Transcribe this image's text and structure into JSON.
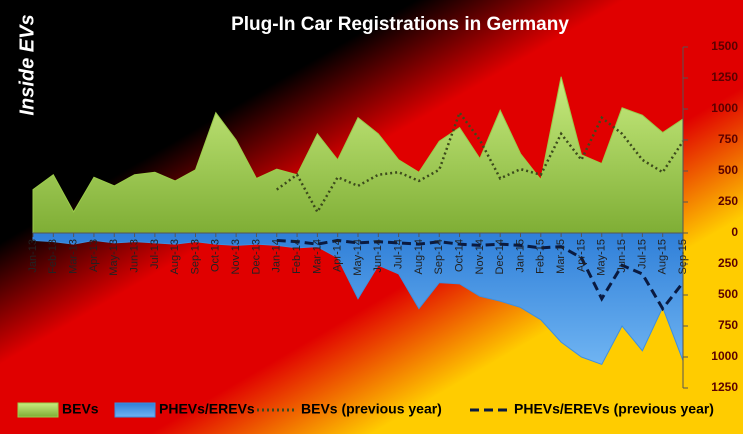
{
  "chart_data": {
    "type": "area",
    "title": "Plug-In Car Registrations in Germany",
    "logo": "Inside EVs",
    "categories": [
      "Jan-13",
      "Feb-13",
      "Mar-13",
      "Apr-13",
      "May-13",
      "Jun-13",
      "Jul-13",
      "Aug-13",
      "Sep-13",
      "Oct-13",
      "Nov-13",
      "Dec-13",
      "Jan-14",
      "Feb-14",
      "Mar-14",
      "Apr-14",
      "May-14",
      "Jun-14",
      "Jul-14",
      "Aug-14",
      "Sep-14",
      "Oct-14",
      "Nov-14",
      "Dec-14",
      "Jan-15",
      "Feb-15",
      "Mar-15",
      "Apr-15",
      "May-15",
      "Jun-15",
      "Jul-15",
      "Aug-15",
      "Sep-15"
    ],
    "series": [
      {
        "name": "BEVs",
        "color": "#9ccc4a",
        "style": "area",
        "values": [
          350,
          470,
          170,
          450,
          380,
          470,
          490,
          420,
          510,
          970,
          750,
          440,
          515,
          470,
          800,
          590,
          930,
          800,
          590,
          490,
          740,
          850,
          600,
          990,
          640,
          430,
          1260,
          630,
          560,
          1010,
          950,
          810,
          920
        ]
      },
      {
        "name": "PHEVs/EREVs",
        "color": "#3d8fe0",
        "style": "area",
        "values": [
          -60,
          -70,
          -90,
          -60,
          -80,
          -70,
          -80,
          -90,
          -70,
          -90,
          -100,
          -90,
          -100,
          -120,
          -110,
          -200,
          -530,
          -260,
          -330,
          -610,
          -400,
          -410,
          -510,
          -550,
          -600,
          -700,
          -880,
          -1000,
          -1060,
          -750,
          -950,
          -600,
          -1030
        ]
      },
      {
        "name": "BEVs (previous year)",
        "color": "#3c4a1c",
        "style": "dotted",
        "values": [
          null,
          null,
          null,
          null,
          null,
          null,
          null,
          null,
          null,
          null,
          null,
          null,
          350,
          470,
          170,
          450,
          380,
          470,
          490,
          420,
          510,
          970,
          750,
          440,
          515,
          470,
          800,
          590,
          930,
          800,
          590,
          490,
          740
        ]
      },
      {
        "name": "PHEVs/EREVs (previous year)",
        "color": "#0a1a40",
        "style": "dashed",
        "values": [
          null,
          null,
          null,
          null,
          null,
          null,
          null,
          null,
          null,
          null,
          null,
          null,
          -60,
          -70,
          -90,
          -60,
          -80,
          -70,
          -80,
          -90,
          -70,
          -90,
          -100,
          -90,
          -100,
          -120,
          -110,
          -200,
          -530,
          -260,
          -330,
          -610,
          -400
        ]
      }
    ],
    "ylim": [
      -1250,
      1500
    ],
    "yticks": [
      1500,
      1250,
      1000,
      750,
      500,
      250,
      0,
      {
        "value": -250,
        "label": "250"
      },
      {
        "value": -500,
        "label": "500"
      },
      {
        "value": -750,
        "label": "750"
      },
      {
        "value": -1000,
        "label": "1000"
      },
      {
        "value": -1250,
        "label": "1250"
      }
    ]
  }
}
